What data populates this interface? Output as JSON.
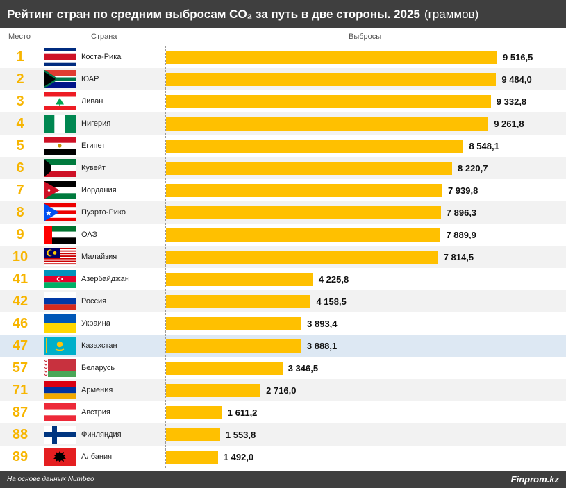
{
  "header": {
    "title_main": "Рейтинг стран по средним выбросам CO₂ за путь в две стороны. 2025",
    "title_unit": "(граммов)"
  },
  "columns": {
    "rank": "Место",
    "country": "Страна",
    "value": "Выбросы"
  },
  "footer": {
    "source": "На основе данных Numbeo",
    "brand": "Finprom.kz"
  },
  "colors": {
    "bar": "#ffc000",
    "rank_text": "#f7b500",
    "highlight_row": "#dde8f3",
    "dark_band": "#3f3f3f"
  },
  "chart_data": {
    "type": "bar",
    "orientation": "horizontal",
    "title": "Рейтинг стран по средним выбросам CO₂ за путь в две стороны. 2025 (граммов)",
    "xlabel": "Выбросы",
    "ylabel": "Страна",
    "xlim": [
      0,
      9516.5
    ],
    "grid": false,
    "highlight_category": "Казахстан",
    "rows": [
      {
        "rank": "1",
        "country": "Коста-Рика",
        "flag": "costa-rica-flag-icon",
        "value": 9516.5,
        "label": "9 516,5"
      },
      {
        "rank": "2",
        "country": "ЮАР",
        "flag": "south-africa-flag-icon",
        "value": 9484.0,
        "label": "9 484,0"
      },
      {
        "rank": "3",
        "country": "Ливан",
        "flag": "lebanon-flag-icon",
        "value": 9332.8,
        "label": "9 332,8"
      },
      {
        "rank": "4",
        "country": "Нигерия",
        "flag": "nigeria-flag-icon",
        "value": 9261.8,
        "label": "9 261,8"
      },
      {
        "rank": "5",
        "country": "Египет",
        "flag": "egypt-flag-icon",
        "value": 8548.1,
        "label": "8 548,1"
      },
      {
        "rank": "6",
        "country": "Кувейт",
        "flag": "kuwait-flag-icon",
        "value": 8220.7,
        "label": "8 220,7"
      },
      {
        "rank": "7",
        "country": "Иордания",
        "flag": "jordan-flag-icon",
        "value": 7939.8,
        "label": "7 939,8"
      },
      {
        "rank": "8",
        "country": "Пуэрто-Рико",
        "flag": "puerto-rico-flag-icon",
        "value": 7896.3,
        "label": "7 896,3"
      },
      {
        "rank": "9",
        "country": "ОАЭ",
        "flag": "uae-flag-icon",
        "value": 7889.9,
        "label": "7 889,9"
      },
      {
        "rank": "10",
        "country": "Малайзия",
        "flag": "malaysia-flag-icon",
        "value": 7814.5,
        "label": "7 814,5"
      },
      {
        "rank": "41",
        "country": "Азербайджан",
        "flag": "azerbaijan-flag-icon",
        "value": 4225.8,
        "label": "4 225,8"
      },
      {
        "rank": "42",
        "country": "Россия",
        "flag": "russia-flag-icon",
        "value": 4158.5,
        "label": "4 158,5"
      },
      {
        "rank": "46",
        "country": "Украина",
        "flag": "ukraine-flag-icon",
        "value": 3893.4,
        "label": "3 893,4"
      },
      {
        "rank": "47",
        "country": "Казахстан",
        "flag": "kazakhstan-flag-icon",
        "value": 3888.1,
        "label": "3 888,1"
      },
      {
        "rank": "57",
        "country": "Беларусь",
        "flag": "belarus-flag-icon",
        "value": 3346.5,
        "label": "3 346,5"
      },
      {
        "rank": "71",
        "country": "Армения",
        "flag": "armenia-flag-icon",
        "value": 2716.0,
        "label": "2 716,0"
      },
      {
        "rank": "87",
        "country": "Австрия",
        "flag": "austria-flag-icon",
        "value": 1611.2,
        "label": "1 611,2"
      },
      {
        "rank": "88",
        "country": "Финляндия",
        "flag": "finland-flag-icon",
        "value": 1553.8,
        "label": "1 553,8"
      },
      {
        "rank": "89",
        "country": "Албания",
        "flag": "albania-flag-icon",
        "value": 1492.0,
        "label": "1 492,0"
      }
    ]
  }
}
